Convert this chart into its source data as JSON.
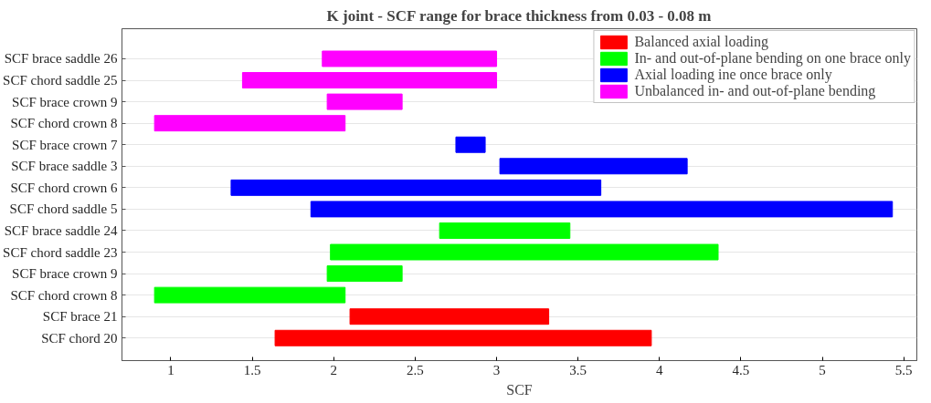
{
  "chart_data": {
    "type": "bar",
    "orientation": "horizontal",
    "title": "K joint - SCF range for brace thickness from 0.03 - 0.08 m",
    "xlabel": "SCF",
    "categories": [
      "SCF brace saddle 26",
      "SCF chord saddle 25",
      "SCF brace crown 9",
      "SCF chord crown 8",
      "SCF brace crown 7",
      "SCF brace saddle 3",
      "SCF chord crown 6",
      "SCF chord saddle 5",
      "SCF brace saddle 24",
      "SCF chord saddle 23",
      "SCF brace crown 9",
      "SCF chord crown 8",
      "SCF brace 21",
      "SCF chord 20"
    ],
    "series": [
      {
        "name": "Balanced axial loading",
        "color": "#ff0000",
        "base": [
          null,
          null,
          null,
          null,
          null,
          null,
          null,
          null,
          null,
          null,
          null,
          null,
          2.1,
          1.64
        ],
        "values": [
          null,
          null,
          null,
          null,
          null,
          null,
          null,
          null,
          null,
          null,
          null,
          null,
          1.22,
          2.31
        ]
      },
      {
        "name": "In- and out-of-plane bending on one brace only",
        "color": "#00ff00",
        "base": [
          null,
          null,
          null,
          null,
          null,
          null,
          null,
          null,
          2.65,
          1.98,
          1.96,
          0.9,
          null,
          null
        ],
        "values": [
          null,
          null,
          null,
          null,
          null,
          null,
          null,
          null,
          0.8,
          2.38,
          0.46,
          1.17,
          null,
          null
        ]
      },
      {
        "name": "Axial loading ine once brace only",
        "color": "#0000ff",
        "base": [
          null,
          null,
          null,
          null,
          2.75,
          3.02,
          1.37,
          1.86,
          null,
          null,
          null,
          null,
          null,
          null
        ],
        "values": [
          null,
          null,
          null,
          null,
          0.18,
          1.15,
          2.27,
          3.57,
          null,
          null,
          null,
          null,
          null,
          null
        ]
      },
      {
        "name": "Unbalanced in- and out-of-plane bending",
        "color": "#ff00ff",
        "base": [
          1.93,
          1.44,
          1.96,
          0.9,
          null,
          null,
          null,
          null,
          null,
          null,
          null,
          null,
          null,
          null
        ],
        "values": [
          1.07,
          1.56,
          0.46,
          1.17,
          null,
          null,
          null,
          null,
          null,
          null,
          null,
          null,
          null,
          null
        ]
      }
    ],
    "xlim": [
      0.7,
      5.58
    ],
    "xticks": [
      1,
      1.5,
      2,
      2.5,
      3,
      3.5,
      4,
      4.5,
      5,
      5.5
    ],
    "grid": "y",
    "legend": "top right"
  }
}
